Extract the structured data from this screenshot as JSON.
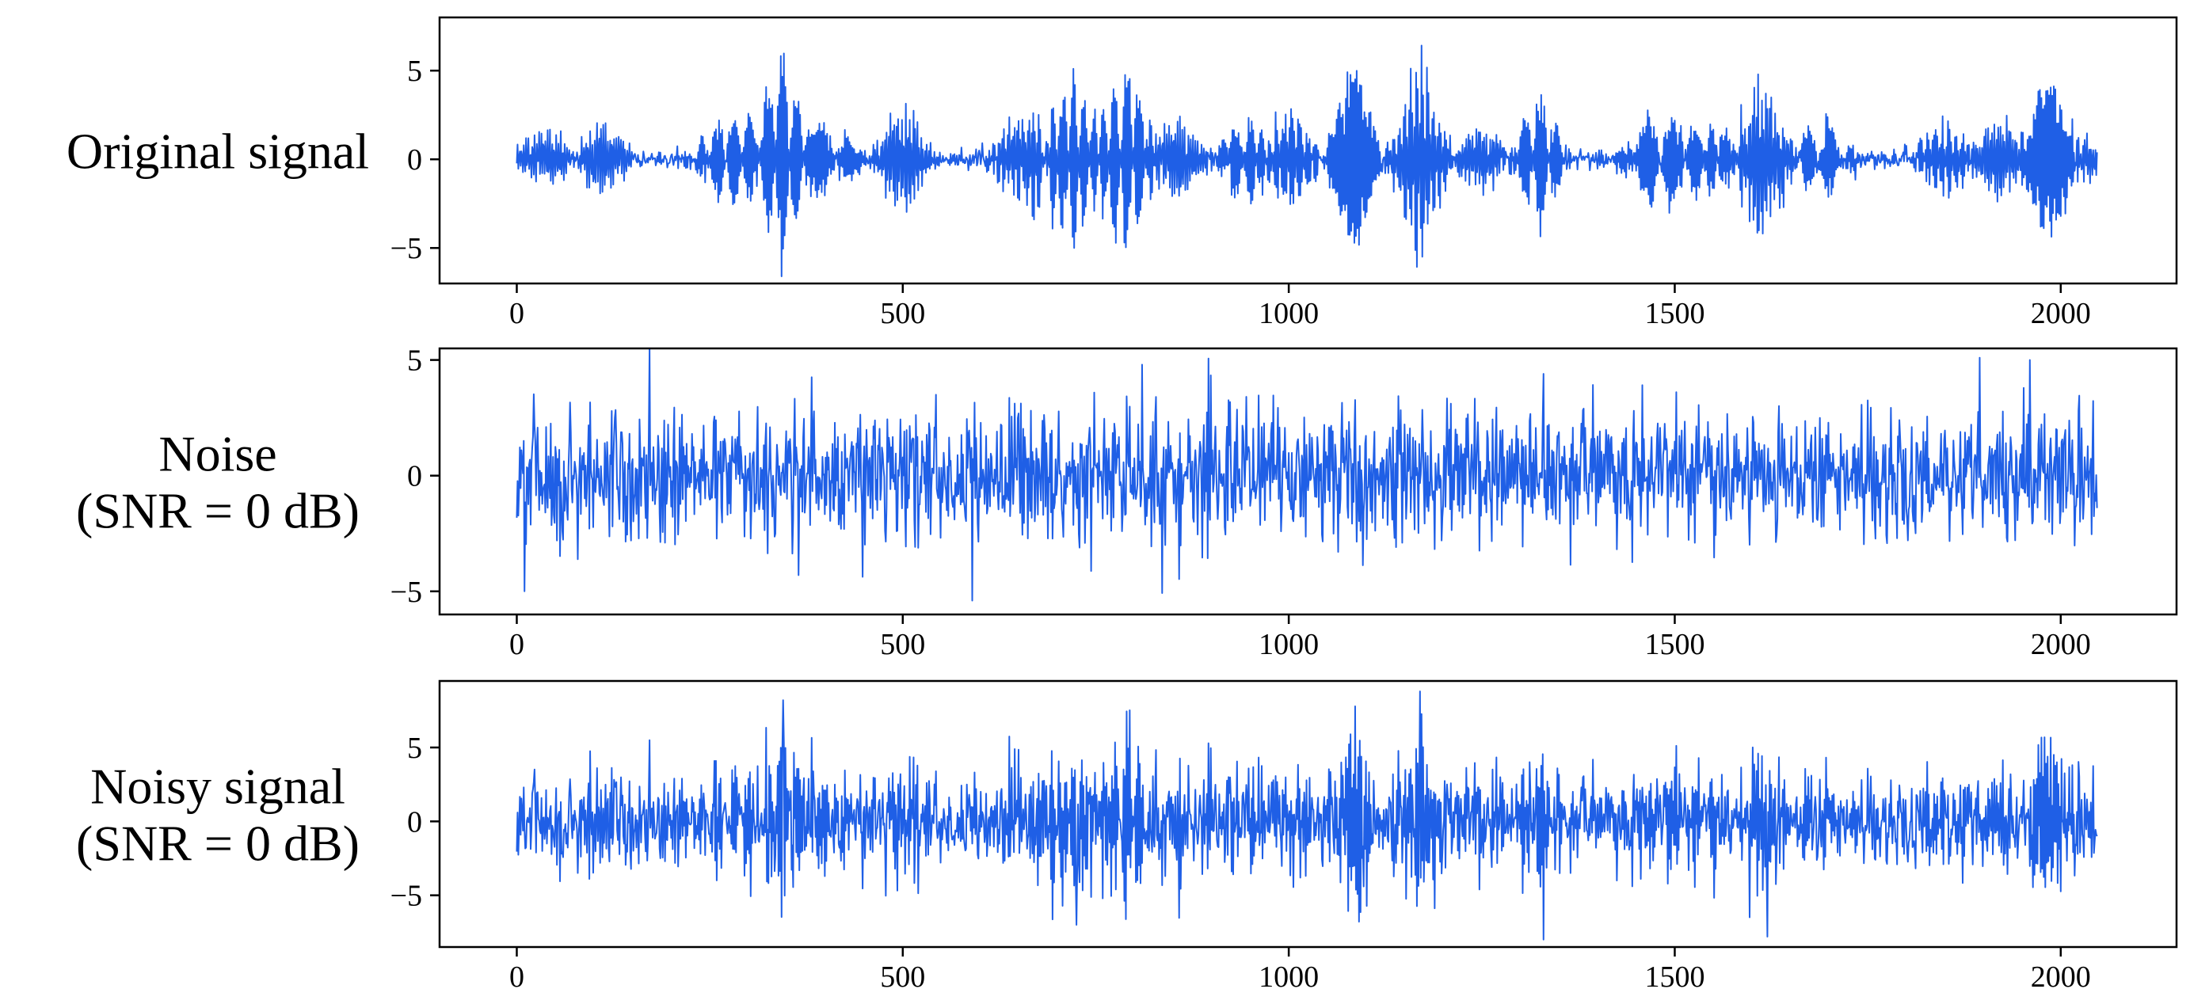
{
  "chart_data": [
    {
      "type": "line",
      "row_label": [
        "Original signal"
      ],
      "title": "",
      "xlabel": "",
      "ylabel": "",
      "xlim": [
        -100,
        2150
      ],
      "ylim": [
        -7,
        8
      ],
      "xticks": [
        0,
        500,
        1000,
        1500,
        2000
      ],
      "yticks": [
        -5,
        0,
        5
      ],
      "xtick_labels": [
        "0",
        "500",
        "1000",
        "1500",
        "2000"
      ],
      "ytick_labels": [
        "−5",
        "0",
        "5"
      ],
      "grid": false,
      "color": "#1f5fe6",
      "series": [
        {
          "samples": 2048,
          "noise_std": 0,
          "background_std": 0.25,
          "bursts": [
            {
              "center": 40,
              "width": 30,
              "amp": 1.8
            },
            {
              "center": 110,
              "width": 22,
              "amp": 2.6
            },
            {
              "center": 280,
              "width": 30,
              "amp": 3.0
            },
            {
              "center": 345,
              "width": 18,
              "amp": 7.0
            },
            {
              "center": 405,
              "width": 25,
              "amp": 2.5
            },
            {
              "center": 500,
              "width": 20,
              "amp": 4.2
            },
            {
              "center": 660,
              "width": 25,
              "amp": 3.5
            },
            {
              "center": 720,
              "width": 25,
              "amp": 5.8
            },
            {
              "center": 790,
              "width": 22,
              "amp": 6.0
            },
            {
              "center": 855,
              "width": 22,
              "amp": 2.7
            },
            {
              "center": 940,
              "width": 22,
              "amp": 2.8
            },
            {
              "center": 1000,
              "width": 25,
              "amp": 3.5
            },
            {
              "center": 1085,
              "width": 22,
              "amp": 5.5
            },
            {
              "center": 1170,
              "width": 20,
              "amp": 7.0
            },
            {
              "center": 1250,
              "width": 20,
              "amp": 2.5
            },
            {
              "center": 1325,
              "width": 20,
              "amp": 4.8
            },
            {
              "center": 1480,
              "width": 30,
              "amp": 3.5
            },
            {
              "center": 1550,
              "width": 22,
              "amp": 2.5
            },
            {
              "center": 1615,
              "width": 22,
              "amp": 5.5
            },
            {
              "center": 1690,
              "width": 25,
              "amp": 2.5
            },
            {
              "center": 1850,
              "width": 25,
              "amp": 2.5
            },
            {
              "center": 1920,
              "width": 22,
              "amp": 3.0
            },
            {
              "center": 1985,
              "width": 20,
              "amp": 5.0
            },
            {
              "center": 2030,
              "width": 15,
              "amp": 1.5
            }
          ]
        }
      ]
    },
    {
      "type": "line",
      "row_label": [
        "Noise",
        "(SNR = 0 dB)"
      ],
      "title": "",
      "xlabel": "",
      "ylabel": "",
      "xlim": [
        -100,
        2150
      ],
      "ylim": [
        -6,
        5.5
      ],
      "xticks": [
        0,
        500,
        1000,
        1500,
        2000
      ],
      "yticks": [
        -5,
        0,
        5
      ],
      "xtick_labels": [
        "0",
        "500",
        "1000",
        "1500",
        "2000"
      ],
      "ytick_labels": [
        "−5",
        "0",
        "5"
      ],
      "grid": false,
      "color": "#1f5fe6",
      "series": [
        {
          "samples": 2048,
          "noise_std": 1.45,
          "background_std": 0,
          "spikes": [
            {
              "index": 10,
              "value": -5.0
            },
            {
              "index": 590,
              "value": -5.4
            },
            {
              "index": 365,
              "value": -4.3
            },
            {
              "index": 1895,
              "value": 5.1
            },
            {
              "index": 1960,
              "value": 5.0
            },
            {
              "index": 810,
              "value": 4.8
            },
            {
              "index": 1330,
              "value": 4.4
            }
          ],
          "bursts": []
        }
      ]
    },
    {
      "type": "line",
      "row_label": [
        "Noisy signal",
        "(SNR = 0 dB)"
      ],
      "title": "",
      "xlabel": "",
      "ylabel": "",
      "xlim": [
        -100,
        2150
      ],
      "ylim": [
        -8.5,
        9.5
      ],
      "xticks": [
        0,
        500,
        1000,
        1500,
        2000
      ],
      "yticks": [
        -5,
        0,
        5
      ],
      "xtick_labels": [
        "0",
        "500",
        "1000",
        "1500",
        "2000"
      ],
      "ytick_labels": [
        "−5",
        "0",
        "5"
      ],
      "grid": false,
      "color": "#1f5fe6",
      "series": [
        {
          "samples": 2048,
          "noise_std": 1.45,
          "background_std": 0.25,
          "spikes": [
            {
              "index": 345,
              "value": 8.2
            },
            {
              "index": 1170,
              "value": 8.8
            },
            {
              "index": 1330,
              "value": -8.0
            },
            {
              "index": 1620,
              "value": -7.8
            },
            {
              "index": 725,
              "value": -7.0
            }
          ],
          "bursts": [
            {
              "center": 40,
              "width": 30,
              "amp": 1.8
            },
            {
              "center": 110,
              "width": 22,
              "amp": 2.6
            },
            {
              "center": 280,
              "width": 30,
              "amp": 3.0
            },
            {
              "center": 345,
              "width": 18,
              "amp": 7.0
            },
            {
              "center": 405,
              "width": 25,
              "amp": 2.5
            },
            {
              "center": 500,
              "width": 20,
              "amp": 4.2
            },
            {
              "center": 660,
              "width": 25,
              "amp": 3.5
            },
            {
              "center": 720,
              "width": 25,
              "amp": 5.8
            },
            {
              "center": 790,
              "width": 22,
              "amp": 6.0
            },
            {
              "center": 855,
              "width": 22,
              "amp": 2.7
            },
            {
              "center": 940,
              "width": 22,
              "amp": 2.8
            },
            {
              "center": 1000,
              "width": 25,
              "amp": 3.5
            },
            {
              "center": 1085,
              "width": 22,
              "amp": 5.5
            },
            {
              "center": 1170,
              "width": 20,
              "amp": 7.0
            },
            {
              "center": 1250,
              "width": 20,
              "amp": 2.5
            },
            {
              "center": 1325,
              "width": 20,
              "amp": 4.8
            },
            {
              "center": 1480,
              "width": 30,
              "amp": 3.5
            },
            {
              "center": 1550,
              "width": 22,
              "amp": 2.5
            },
            {
              "center": 1615,
              "width": 22,
              "amp": 5.5
            },
            {
              "center": 1690,
              "width": 25,
              "amp": 2.5
            },
            {
              "center": 1850,
              "width": 25,
              "amp": 2.5
            },
            {
              "center": 1920,
              "width": 22,
              "amp": 3.0
            },
            {
              "center": 1985,
              "width": 20,
              "amp": 5.0
            },
            {
              "center": 2030,
              "width": 15,
              "amp": 1.5
            }
          ]
        }
      ]
    }
  ]
}
